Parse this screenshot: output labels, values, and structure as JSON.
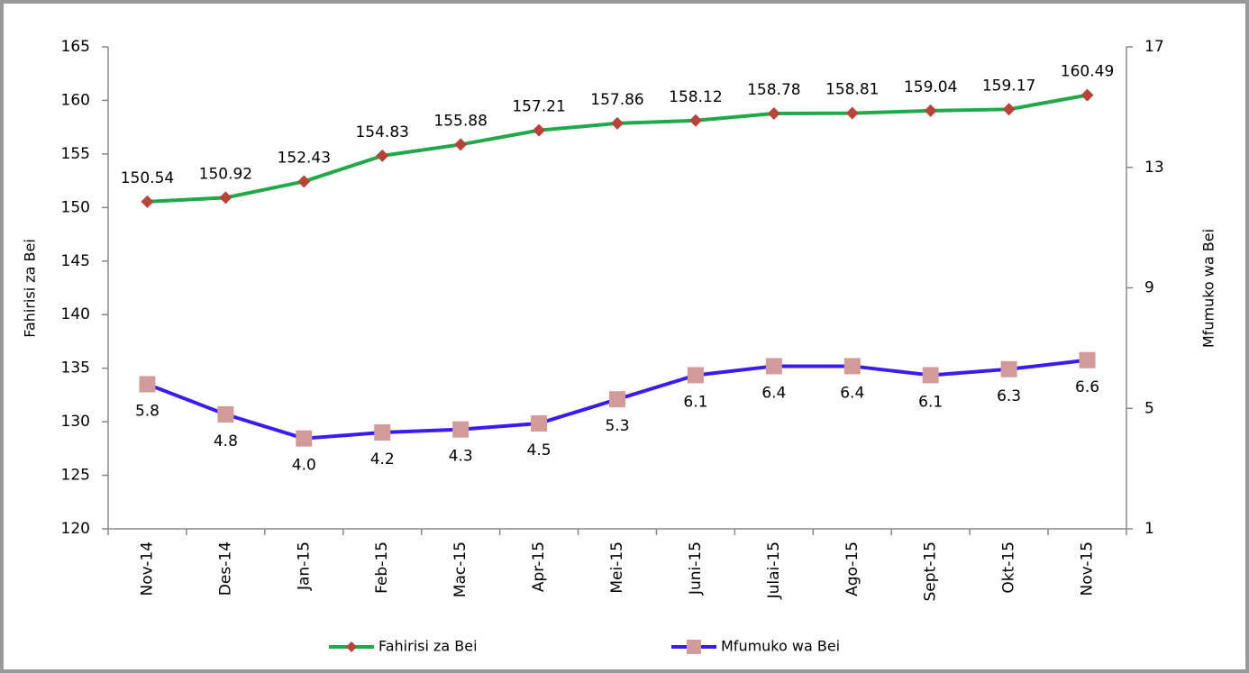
{
  "chart_data": {
    "type": "line",
    "y_label": "Fahirisi za Bei",
    "y2_label": "Mfumuko wa Bei",
    "categories": [
      "Nov-14",
      "Des-14",
      "Jan-15",
      "Feb-15",
      "Mac-15",
      "Apr-15",
      "Mei-15",
      "Juni-15",
      "Julai-15",
      "Ago-15",
      "Sept-15",
      "Okt-15",
      "Nov-15"
    ],
    "series": [
      {
        "name": "Fahirisi za Bei",
        "color": "#22a84a",
        "marker": "diamond",
        "marker_color": "#b5443a",
        "label_position": "above",
        "values": [
          150.54,
          150.92,
          152.43,
          154.83,
          155.88,
          157.21,
          157.86,
          158.12,
          158.78,
          158.81,
          159.04,
          159.17,
          160.49
        ]
      },
      {
        "name": "Mfumuko wa Bei",
        "color": "#3a1cf0",
        "marker": "square",
        "marker_color": "#d39a9a",
        "label_position": "below",
        "axis": "y2",
        "values": [
          5.8,
          4.8,
          4.0,
          4.2,
          4.3,
          4.5,
          5.3,
          6.1,
          6.4,
          6.4,
          6.1,
          6.3,
          6.6
        ],
        "value_labels": [
          "5.8",
          "4.8",
          "4.0",
          "4.2",
          "4.3",
          "4.5",
          "5.3",
          "6.1",
          "6.4",
          "6.4",
          "6.1",
          "6.3",
          "6.6"
        ]
      }
    ],
    "ylim": [
      120,
      165
    ],
    "yticks": [
      120,
      125,
      130,
      135,
      140,
      145,
      150,
      155,
      160,
      165
    ],
    "y2lim": [
      1,
      17
    ],
    "y2ticks": [
      1,
      5,
      9,
      13,
      17
    ],
    "grid": false,
    "legend": "bottom"
  }
}
